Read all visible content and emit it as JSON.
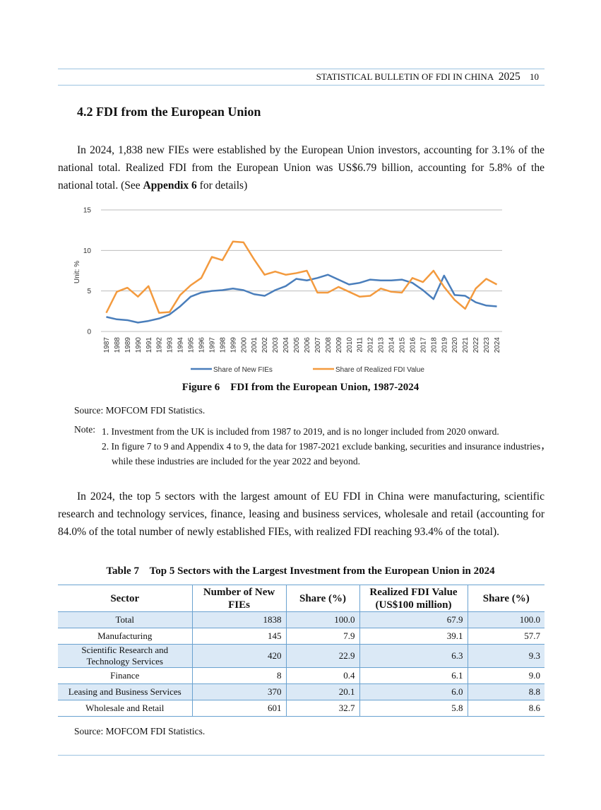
{
  "header": {
    "title": "STATISTICAL BULLETIN OF FDI IN CHINA",
    "year": "2025",
    "page": "10"
  },
  "section_title": "4.2 FDI from the European Union",
  "paragraph1": [
    "In 2024, 1,838 new FIEs were established by the European Union investors, accounting for 3.1% of the national total. Realized FDI from the European Union was US$6.79 billion, accounting for 5.8% of the national total. (See ",
    "Appendix 6",
    " for details)"
  ],
  "chart_data": {
    "type": "line",
    "y_label": "Unit: %",
    "categories": [
      "1987",
      "1988",
      "1989",
      "1990",
      "1991",
      "1992",
      "1993",
      "1994",
      "1995",
      "1996",
      "1997",
      "1998",
      "1999",
      "2000",
      "2001",
      "2002",
      "2003",
      "2004",
      "2005",
      "2006",
      "2007",
      "2008",
      "2009",
      "2010",
      "2011",
      "2012",
      "2013",
      "2014",
      "2015",
      "2016",
      "2017",
      "2018",
      "2019",
      "2020",
      "2021",
      "2022",
      "2023",
      "2024"
    ],
    "series": [
      {
        "name": "Share of New FIEs",
        "color": "#4a7ebb",
        "values": [
          1.8,
          1.5,
          1.4,
          1.1,
          1.3,
          1.6,
          2.1,
          3.1,
          4.3,
          4.8,
          5.0,
          5.1,
          5.3,
          5.1,
          4.6,
          4.4,
          5.1,
          5.6,
          6.5,
          6.3,
          6.6,
          7.0,
          6.4,
          5.8,
          6.0,
          6.4,
          6.3,
          6.3,
          6.4,
          6.0,
          5.1,
          4.0,
          6.9,
          4.5,
          4.4,
          3.6,
          3.2,
          3.1
        ]
      },
      {
        "name": "Share of Realized FDI Value",
        "color": "#f39a3e",
        "values": [
          2.3,
          4.9,
          5.4,
          4.3,
          5.6,
          2.3,
          2.4,
          4.5,
          5.7,
          6.6,
          9.2,
          8.8,
          11.1,
          11.0,
          8.9,
          7.0,
          7.4,
          7.0,
          7.2,
          7.5,
          4.8,
          4.8,
          5.5,
          4.9,
          4.3,
          4.4,
          5.3,
          4.9,
          4.8,
          6.6,
          6.1,
          7.5,
          5.5,
          3.9,
          2.8,
          5.3,
          6.5,
          5.8
        ]
      }
    ],
    "ylim": [
      0,
      15
    ],
    "yticks": [
      0,
      5,
      10,
      15
    ],
    "grid": true,
    "legend": "bottom"
  },
  "figure_caption": "Figure 6    FDI from the European Union, 1987-2024",
  "source1": "Source: MOFCOM FDI Statistics.",
  "note_label": "Note:",
  "notes": [
    "1. Investment from the UK is included from 1987 to 2019, and is no longer included from 2020 onward.",
    "2. In figure 7 to 9 and Appendix 4 to 9, the data for 1987-2021 exclude banking, securities and insurance industries，while these industries are included for the year 2022 and beyond."
  ],
  "paragraph2": "In 2024, the top 5 sectors with the largest amount of EU FDI in China were manufacturing, scientific research and technology services, finance, leasing and business services, wholesale and retail (accounting for 84.0% of the total number of newly established FIEs, with realized FDI reaching 93.4% of the total).",
  "table": {
    "caption": "Table 7    Top 5 Sectors with the Largest Investment from the European Union in 2024",
    "headers": [
      "Sector",
      "Number of New FIEs",
      "Share (%)",
      "Realized FDI Value (US$100 million)",
      "Share (%)"
    ],
    "rows": [
      [
        "Total",
        "1838",
        "100.0",
        "67.9",
        "100.0"
      ],
      [
        "Manufacturing",
        "145",
        "7.9",
        "39.1",
        "57.7"
      ],
      [
        "Scientific Research and Technology Services",
        "420",
        "22.9",
        "6.3",
        "9.3"
      ],
      [
        "Finance",
        "8",
        "0.4",
        "6.1",
        "9.0"
      ],
      [
        "Leasing and Business Services",
        "370",
        "20.1",
        "6.0",
        "8.8"
      ],
      [
        "Wholesale and Retail",
        "601",
        "32.7",
        "5.8",
        "8.6"
      ]
    ]
  },
  "source2": "Source: MOFCOM FDI Statistics."
}
